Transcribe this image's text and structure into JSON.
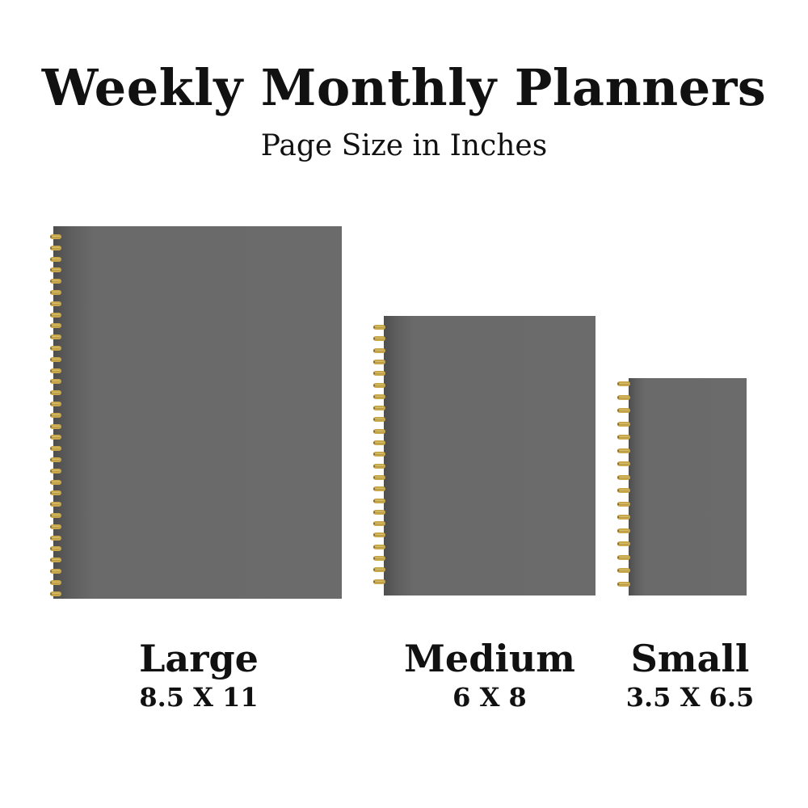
{
  "title": "Weekly Monthly Planners",
  "subtitle": "Page Size in Inches",
  "cover_color": "#6b6b6b",
  "ring_color": "#c9a84a",
  "planners": [
    {
      "name": "Large",
      "dims": "8.5 X 11"
    },
    {
      "name": "Medium",
      "dims": "6 X 8"
    },
    {
      "name": "Small",
      "dims": "3.5 X 6.5"
    }
  ]
}
